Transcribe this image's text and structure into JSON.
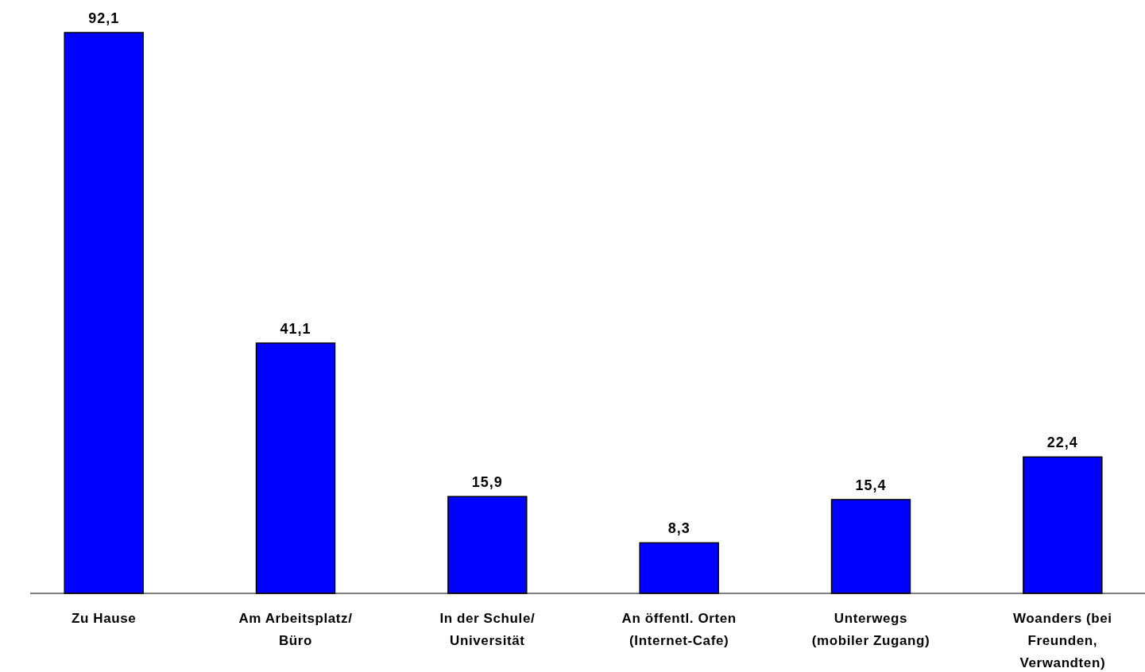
{
  "chart_data": {
    "type": "bar",
    "categories": [
      "Zu Hause",
      "Am Arbeitsplatz/ Büro",
      "In der Schule/ Universität",
      "An öffentl. Orten (Internet-Cafe)",
      "Unterwegs (mobiler Zugang)",
      "Woanders (bei Freunden, Verwandten)"
    ],
    "values": [
      92.1,
      41.1,
      15.9,
      8.3,
      15.4,
      22.4
    ],
    "value_labels": [
      "92,1",
      "41,1",
      "15,9",
      "8,3",
      "15,4",
      "22,4"
    ],
    "color": "#0000ff"
  }
}
